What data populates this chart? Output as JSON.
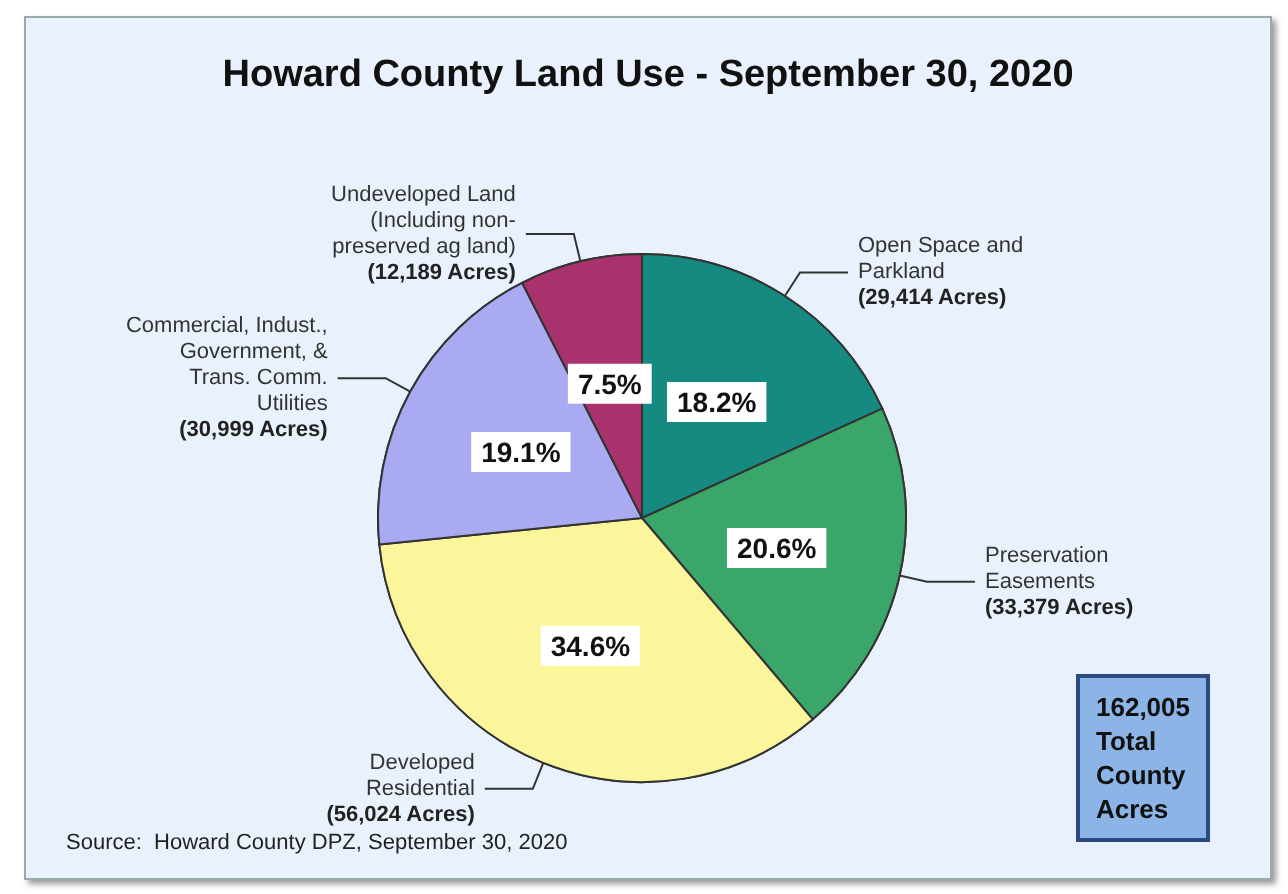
{
  "chart_data": {
    "type": "pie",
    "title": "Howard County Land Use - September 30, 2020",
    "categories": [
      "Open Space and\nParkland\n(29,414 Acres)",
      "Preservation\nEasements\n(33,379 Acres)",
      "Developed\nResidential\n(56,024 Acres)",
      "Commercial, Indust.,\nGovernment, &\nTrans. Comm.\nUtilities\n(30,999 Acres)",
      "Undeveloped Land\n(Including non-\npreserved ag land)\n(12,189 Acres)"
    ],
    "values": [
      18.2,
      20.6,
      34.6,
      19.1,
      7.5
    ],
    "value_labels": [
      "18.2%",
      "20.6%",
      "34.6%",
      "19.1%",
      "7.5%"
    ],
    "colors": [
      "#168a80",
      "#3aa66a",
      "#fbf59c",
      "#aaaaf2",
      "#a8336c"
    ],
    "annotations": [
      "162,005\nTotal\nCounty\nAcres",
      "Source:  Howard County DPZ, September 30, 2020"
    ]
  }
}
